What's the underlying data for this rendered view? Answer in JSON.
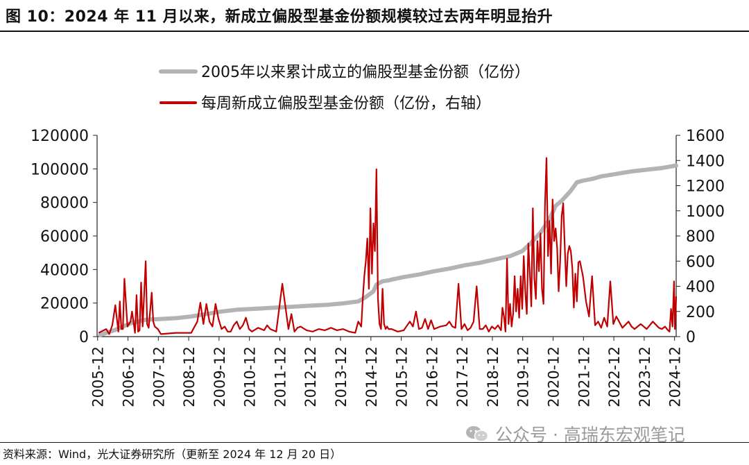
{
  "figure_title": "图 10：2024 年 11 月以来，新成立偏股型基金份额规模较过去两年明显抬升",
  "source_note": "资料来源：Wind，光大证券研究所（更新至 2024 年 12 月 20 日）",
  "watermark": "公众号 · 高瑞东宏观笔记",
  "watermark_icon": "wechat-icon",
  "colors": {
    "cumulative": "#b3b3b3",
    "weekly": "#c00000",
    "text": "#111111",
    "watermark": "#9a9a9a"
  },
  "chart_data": {
    "type": "line",
    "x_ticks": [
      "2005-12",
      "2006-12",
      "2007-12",
      "2008-12",
      "2009-12",
      "2010-12",
      "2011-12",
      "2012-12",
      "2013-12",
      "2014-12",
      "2015-12",
      "2016-12",
      "2017-12",
      "2018-12",
      "2019-12",
      "2020-12",
      "2021-12",
      "2022-12",
      "2023-12",
      "2024-12"
    ],
    "x_range": [
      2005.9,
      2024.97
    ],
    "y_left": {
      "ylim": [
        0,
        120000
      ],
      "ticks": [
        0,
        20000,
        40000,
        60000,
        80000,
        100000,
        120000
      ]
    },
    "y_right": {
      "ylim": [
        0,
        1600
      ],
      "ticks": [
        0,
        200,
        400,
        600,
        800,
        1000,
        1200,
        1400,
        1600
      ]
    },
    "legend_position": "top-center",
    "grid": false,
    "series": [
      {
        "name": "2005年以来累计成立的偏股型基金份额（亿份）",
        "axis": "left",
        "style": "thick-gray-line",
        "x": [
          2006.0,
          2006.5,
          2007.0,
          2007.5,
          2008.0,
          2008.5,
          2009.0,
          2009.5,
          2010.0,
          2010.5,
          2011.0,
          2011.5,
          2012.0,
          2012.5,
          2013.0,
          2013.5,
          2014.0,
          2014.5,
          2014.7,
          2015.0,
          2015.1,
          2015.3,
          2015.5,
          2015.6,
          2016.0,
          2016.5,
          2017.0,
          2017.5,
          2018.0,
          2018.5,
          2019.0,
          2019.5,
          2019.9,
          2020.2,
          2020.5,
          2020.8,
          2021.0,
          2021.2,
          2021.5,
          2021.7,
          2021.9,
          2022.2,
          2022.5,
          2023.0,
          2023.5,
          2024.0,
          2024.5,
          2024.97
        ],
        "values": [
          1000,
          4000,
          8000,
          10000,
          10500,
          11000,
          12000,
          13500,
          15000,
          16000,
          16500,
          17000,
          17500,
          18000,
          18500,
          19000,
          19800,
          21000,
          23000,
          27000,
          31000,
          33000,
          33500,
          34000,
          35500,
          37000,
          39000,
          40500,
          42500,
          44000,
          46000,
          48000,
          51000,
          56000,
          62000,
          70000,
          78000,
          81000,
          87000,
          92000,
          93000,
          94000,
          95500,
          97000,
          98500,
          99500,
          100500,
          102000
        ]
      },
      {
        "name": "每周新成立偏股型基金份额（亿份，右轴）",
        "axis": "right",
        "style": "thin-red-line",
        "x": [
          2005.95,
          2006.2,
          2006.3,
          2006.4,
          2006.5,
          2006.6,
          2006.65,
          2006.7,
          2006.75,
          2006.8,
          2006.9,
          2007.0,
          2007.05,
          2007.15,
          2007.2,
          2007.25,
          2007.3,
          2007.35,
          2007.4,
          2007.5,
          2007.55,
          2007.6,
          2007.7,
          2007.75,
          2007.8,
          2007.9,
          2008.0,
          2008.5,
          2009.0,
          2009.2,
          2009.3,
          2009.4,
          2009.5,
          2009.6,
          2009.7,
          2009.8,
          2009.9,
          2010.0,
          2010.1,
          2010.2,
          2010.3,
          2010.4,
          2010.5,
          2010.6,
          2010.7,
          2010.8,
          2010.9,
          2011.0,
          2011.2,
          2011.4,
          2011.5,
          2011.6,
          2011.8,
          2012.0,
          2012.2,
          2012.3,
          2012.4,
          2012.5,
          2012.6,
          2012.8,
          2013.0,
          2013.2,
          2013.4,
          2013.6,
          2013.8,
          2014.0,
          2014.2,
          2014.4,
          2014.5,
          2014.6,
          2014.65,
          2014.7,
          2014.75,
          2014.8,
          2014.85,
          2014.9,
          2014.95,
          2015.0,
          2015.05,
          2015.1,
          2015.15,
          2015.2,
          2015.25,
          2015.3,
          2015.35,
          2015.4,
          2015.45,
          2015.5,
          2015.6,
          2015.8,
          2016.0,
          2016.2,
          2016.3,
          2016.4,
          2016.5,
          2016.6,
          2016.7,
          2016.8,
          2016.9,
          2017.0,
          2017.2,
          2017.4,
          2017.5,
          2017.6,
          2017.7,
          2017.8,
          2017.9,
          2018.0,
          2018.1,
          2018.2,
          2018.3,
          2018.4,
          2018.5,
          2018.6,
          2018.7,
          2018.8,
          2018.9,
          2019.0,
          2019.1,
          2019.2,
          2019.25,
          2019.3,
          2019.35,
          2019.4,
          2019.45,
          2019.5,
          2019.55,
          2019.6,
          2019.65,
          2019.7,
          2019.75,
          2019.8,
          2019.85,
          2019.9,
          2019.95,
          2020.0,
          2020.05,
          2020.1,
          2020.15,
          2020.2,
          2020.25,
          2020.3,
          2020.35,
          2020.4,
          2020.45,
          2020.5,
          2020.55,
          2020.6,
          2020.65,
          2020.7,
          2020.75,
          2020.8,
          2020.85,
          2020.9,
          2020.95,
          2021.0,
          2021.05,
          2021.1,
          2021.15,
          2021.2,
          2021.25,
          2021.3,
          2021.35,
          2021.4,
          2021.45,
          2021.5,
          2021.55,
          2021.6,
          2021.65,
          2021.7,
          2021.75,
          2021.8,
          2021.9,
          2022.0,
          2022.1,
          2022.2,
          2022.3,
          2022.4,
          2022.5,
          2022.6,
          2022.7,
          2022.8,
          2022.9,
          2023.0,
          2023.2,
          2023.4,
          2023.5,
          2023.6,
          2023.8,
          2024.0,
          2024.2,
          2024.4,
          2024.5,
          2024.6,
          2024.7,
          2024.75,
          2024.8,
          2024.85,
          2024.9,
          2024.93,
          2024.97
        ],
        "values": [
          30,
          60,
          20,
          90,
          250,
          40,
          280,
          60,
          60,
          460,
          80,
          120,
          200,
          30,
          330,
          40,
          50,
          430,
          80,
          600,
          100,
          70,
          350,
          120,
          80,
          60,
          20,
          30,
          30,
          120,
          270,
          100,
          260,
          120,
          80,
          260,
          140,
          60,
          80,
          40,
          40,
          90,
          120,
          60,
          90,
          150,
          60,
          40,
          70,
          50,
          90,
          60,
          40,
          420,
          60,
          180,
          40,
          70,
          80,
          50,
          40,
          60,
          50,
          70,
          50,
          60,
          40,
          30,
          120,
          80,
          300,
          480,
          600,
          780,
          380,
          1020,
          500,
          900,
          680,
          1330,
          300,
          100,
          60,
          380,
          100,
          60,
          80,
          60,
          60,
          40,
          50,
          120,
          80,
          200,
          60,
          70,
          140,
          60,
          130,
          60,
          80,
          90,
          120,
          80,
          70,
          420,
          60,
          100,
          50,
          70,
          120,
          400,
          60,
          60,
          90,
          40,
          80,
          60,
          90,
          50,
          230,
          160,
          40,
          620,
          100,
          260,
          80,
          180,
          480,
          200,
          380,
          150,
          480,
          220,
          640,
          360,
          180,
          740,
          500,
          240,
          1020,
          460,
          300,
          760,
          520,
          820,
          380,
          260,
          1040,
          1420,
          640,
          920,
          500,
          1090,
          760,
          860,
          700,
          360,
          600,
          960,
          1060,
          720,
          400,
          660,
          720,
          680,
          540,
          230,
          500,
          280,
          590,
          600,
          480,
          280,
          160,
          480,
          90,
          120,
          70,
          150,
          80,
          440,
          100,
          160,
          70,
          120,
          80,
          60,
          100,
          60,
          120,
          70,
          60,
          80,
          50,
          40,
          220,
          80,
          440,
          60,
          320
        ],
        "peak_label_not_shown": true
      }
    ]
  }
}
